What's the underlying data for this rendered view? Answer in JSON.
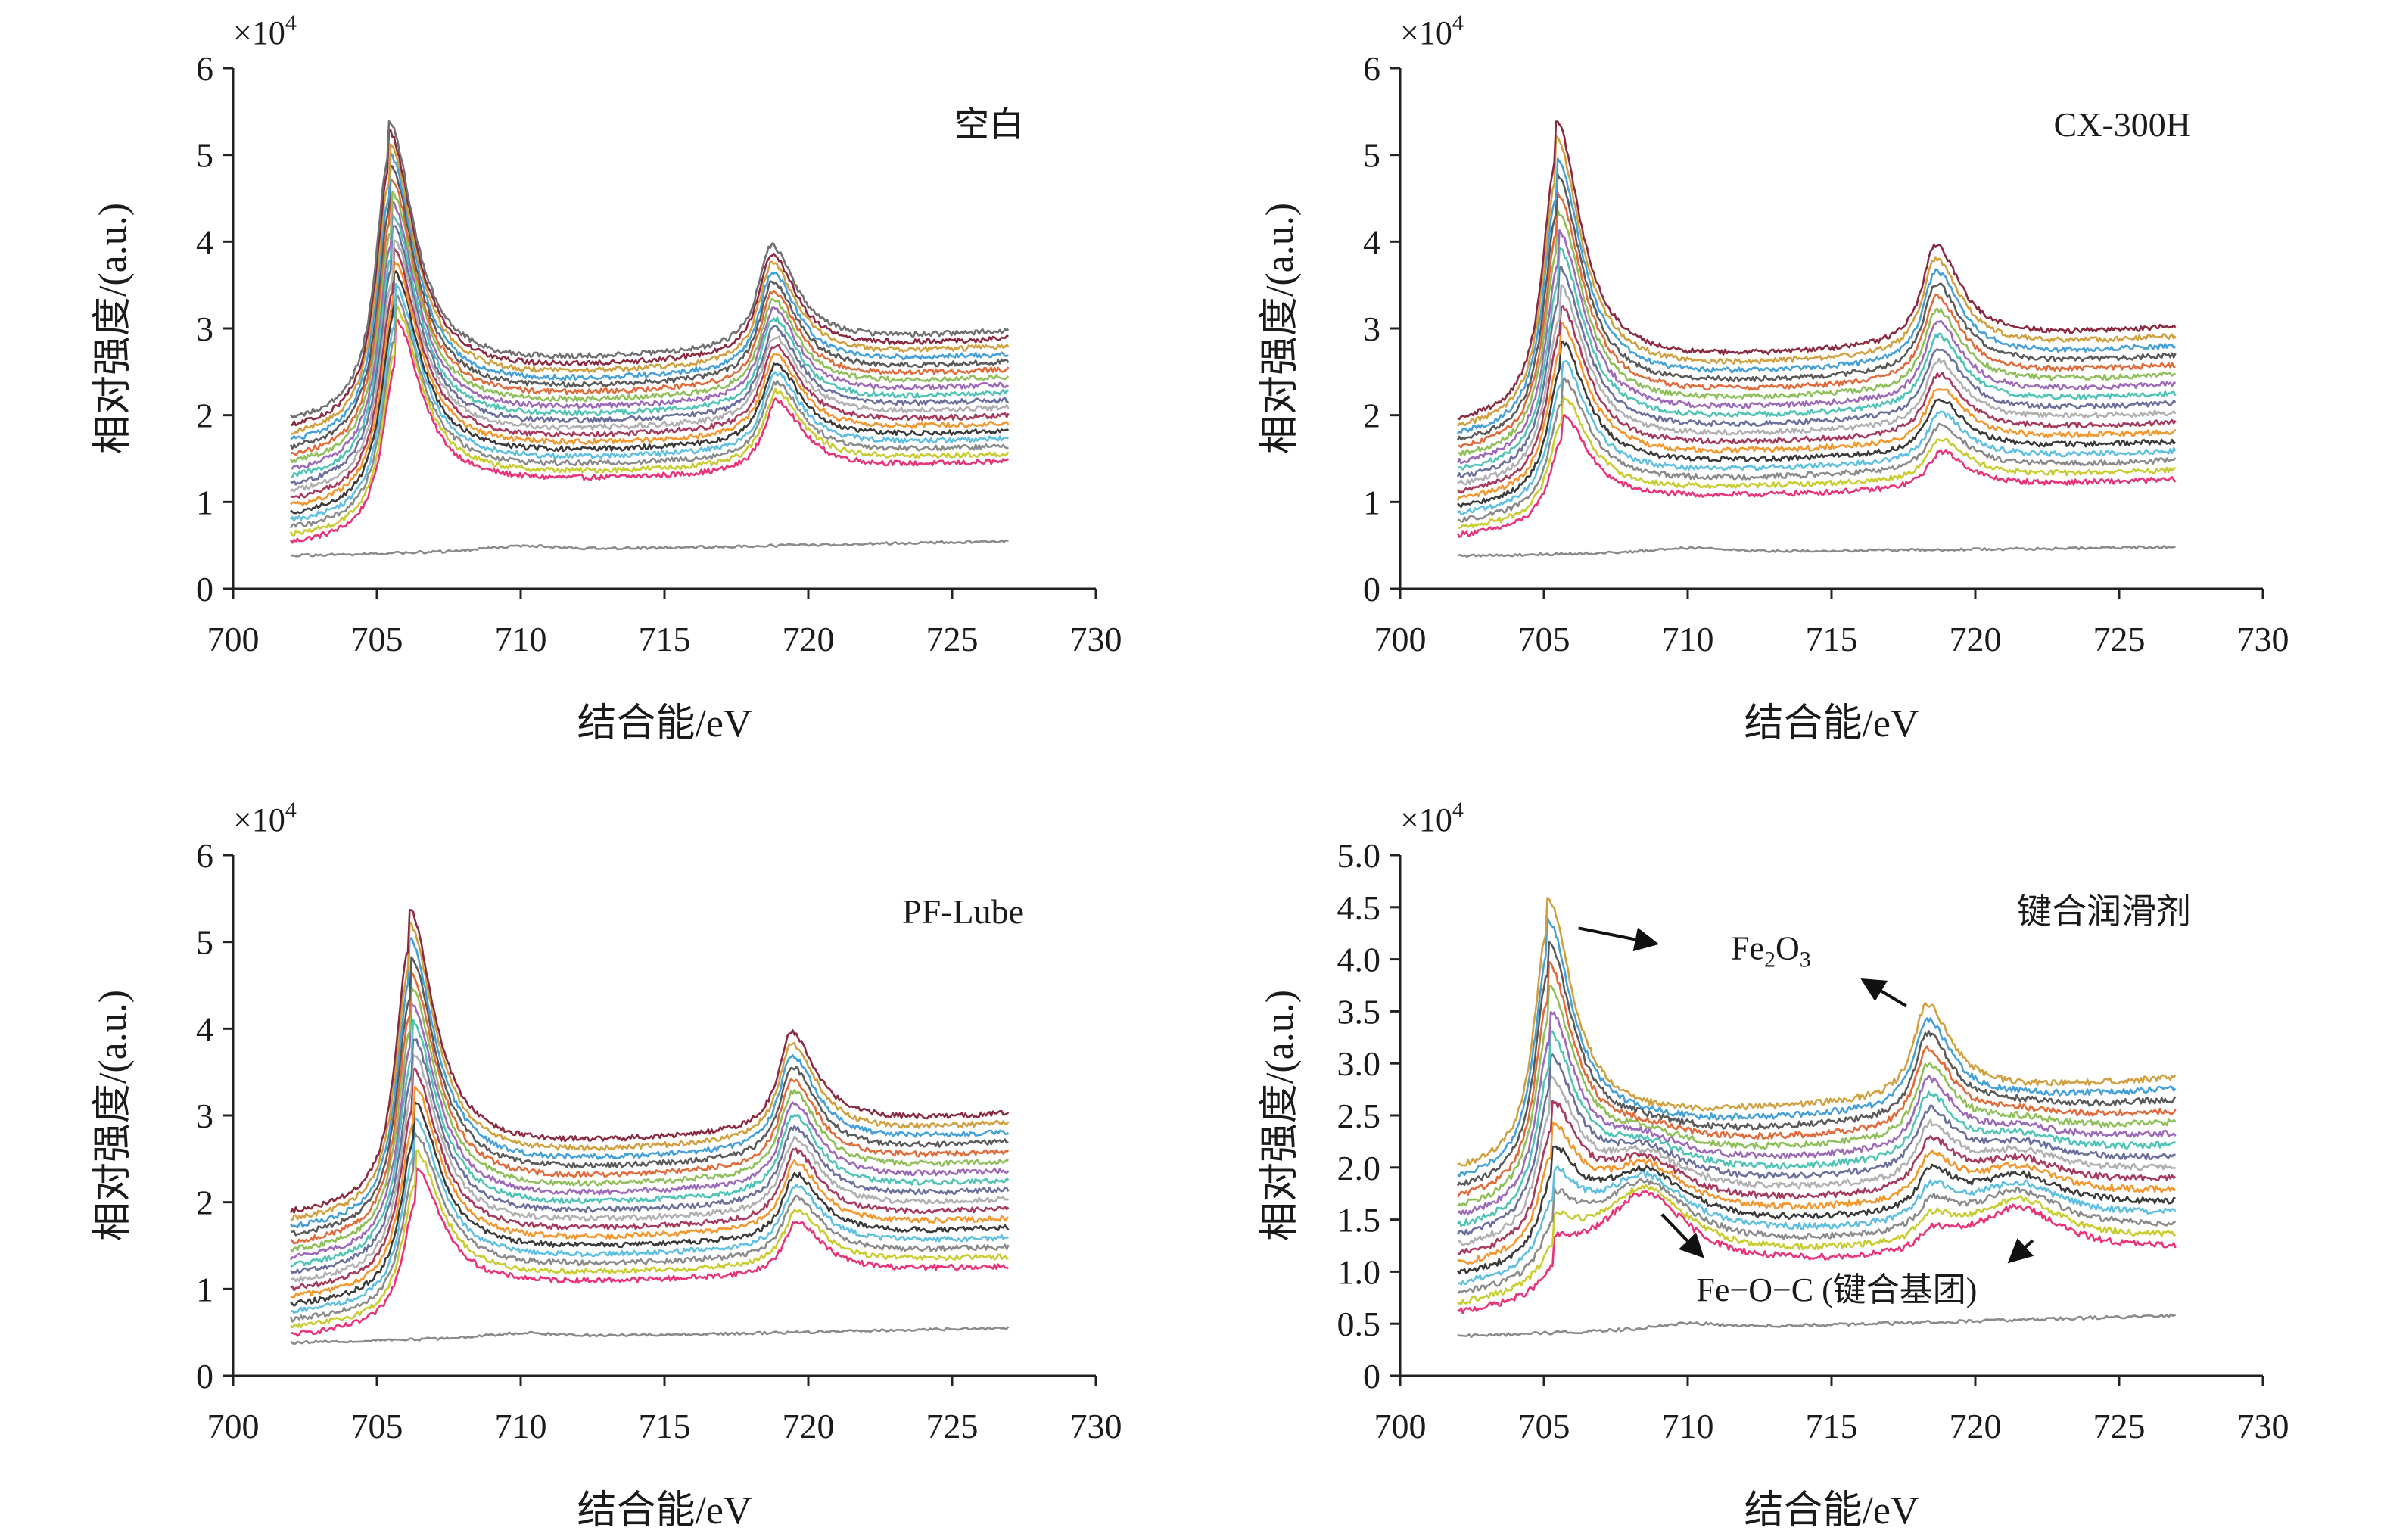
{
  "chart_data": [
    {
      "type": "line",
      "panel_label": "空白",
      "xlabel": "结合能/eV",
      "ylabel": "相对强度/(a.u.)",
      "y_multiplier": "×10",
      "y_multiplier_exp": "4",
      "xlim": [
        700,
        730
      ],
      "ylim": [
        0,
        6
      ],
      "xticks": [
        700,
        705,
        710,
        715,
        720,
        725,
        730
      ],
      "yticks": [
        0,
        1,
        2,
        3,
        4,
        5,
        6
      ],
      "ytick_labels": [
        "0",
        "1",
        "2",
        "3",
        "4",
        "5",
        "6"
      ],
      "x_range": [
        702,
        727
      ],
      "series_count": 18,
      "peak1_pos": 705.4,
      "peak1_tops": [
        3.1,
        5.4
      ],
      "peak2_pos": 718.7,
      "peak2_tops": [
        2.2,
        4.0
      ],
      "start_levels": [
        0.5,
        1.9
      ],
      "end_levels": [
        1.45,
        2.95
      ],
      "baseline": [
        0.38,
        0.55
      ]
    },
    {
      "type": "line",
      "panel_label": "CX-300H",
      "xlabel": "结合能/eV",
      "ylabel": "相对强度/(a.u.)",
      "y_multiplier": "×10",
      "y_multiplier_exp": "4",
      "xlim": [
        700,
        730
      ],
      "ylim": [
        0,
        6
      ],
      "xticks": [
        700,
        705,
        710,
        715,
        720,
        725,
        730
      ],
      "yticks": [
        0,
        1,
        2,
        3,
        4,
        5,
        6
      ],
      "ytick_labels": [
        "0",
        "1",
        "2",
        "3",
        "4",
        "5",
        "6"
      ],
      "x_range": [
        702,
        727
      ],
      "series_count": 17,
      "peak1_pos": 705.4,
      "peak1_tops": [
        2.0,
        5.4
      ],
      "peak2_pos": 718.6,
      "peak2_tops": [
        1.6,
        4.0
      ],
      "start_levels": [
        0.6,
        1.9
      ],
      "end_levels": [
        1.25,
        3.0
      ],
      "baseline": [
        0.38,
        0.48
      ]
    },
    {
      "type": "line",
      "panel_label": "PF-Lube",
      "xlabel": "结合能/eV",
      "ylabel": "相对强度/(a.u.)",
      "y_multiplier": "×10",
      "y_multiplier_exp": "4",
      "xlim": [
        700,
        730
      ],
      "ylim": [
        0,
        6
      ],
      "xticks": [
        700,
        705,
        710,
        715,
        720,
        725,
        730
      ],
      "yticks": [
        0,
        1,
        2,
        3,
        4,
        5,
        6
      ],
      "ytick_labels": [
        "0",
        "1",
        "2",
        "3",
        "4",
        "5",
        "6"
      ],
      "x_range": [
        702,
        727
      ],
      "series_count": 17,
      "peak1_pos": 706.1,
      "peak1_tops": [
        2.4,
        5.4
      ],
      "peak2_pos": 719.4,
      "peak2_tops": [
        1.8,
        4.0
      ],
      "start_levels": [
        0.45,
        1.85
      ],
      "end_levels": [
        1.25,
        3.0
      ],
      "baseline": [
        0.38,
        0.55
      ]
    },
    {
      "type": "line",
      "panel_label": "键合润滑剂",
      "xlabel": "结合能/eV",
      "ylabel": "相对强度/(a.u.)",
      "y_multiplier": "×10",
      "y_multiplier_exp": "4",
      "xlim": [
        700,
        730
      ],
      "ylim": [
        0,
        5
      ],
      "xticks": [
        700,
        705,
        710,
        715,
        720,
        725,
        730
      ],
      "yticks": [
        0,
        0.5,
        1.0,
        1.5,
        2.0,
        2.5,
        3.0,
        3.5,
        4.0,
        4.5,
        5.0
      ],
      "ytick_labels": [
        "0",
        "0.5",
        "1.0",
        "1.5",
        "2.0",
        "2.5",
        "3.0",
        "3.5",
        "4.0",
        "4.5",
        "5.0"
      ],
      "x_range": [
        702,
        727
      ],
      "series_count": 16,
      "peak1_pos": 705.1,
      "peak1_tops": [
        1.15,
        4.6
      ],
      "peak2_pos": 718.3,
      "peak2_tops": [
        1.3,
        3.6
      ],
      "start_levels": [
        0.55,
        1.95
      ],
      "end_levels": [
        1.2,
        2.85
      ],
      "baseline": [
        0.38,
        0.58
      ],
      "shoulders": [
        {
          "x": 708.5,
          "amp": 0.75
        },
        {
          "x": 721.5,
          "amp": 0.45
        }
      ],
      "annotations": {
        "fe2o3_main": "Fe",
        "fe2o3_sub": "2",
        "fe2o3_o": "O",
        "fe2o3_sub2": "3",
        "feoc": "Fe−O−C (键合基团)"
      }
    }
  ],
  "colors": {
    "series": [
      "#e8327a",
      "#c8cc30",
      "#8a8a8a",
      "#5fbfe0",
      "#3a3a3a",
      "#f2962e",
      "#a63a5a",
      "#b0b0b0",
      "#6a6f9c",
      "#4fc3b5",
      "#9c6ab8",
      "#8fbf5a",
      "#e06a3a",
      "#5a5a5a",
      "#46a0d8",
      "#d0a040",
      "#8a2a40",
      "#707070"
    ],
    "axis": "#222222"
  }
}
